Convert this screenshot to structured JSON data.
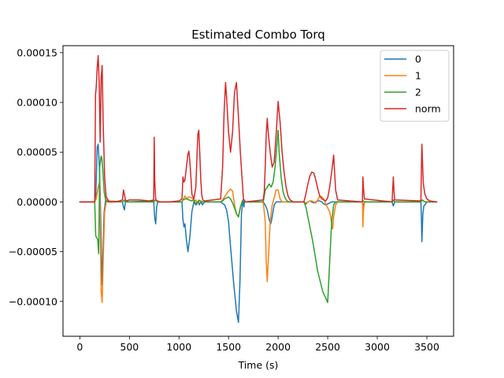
{
  "chart_data": {
    "type": "line",
    "title": "Estimated Combo Torq",
    "xlabel": "Time (s)",
    "ylabel": "",
    "xlim": [
      -170,
      3770
    ],
    "ylim": [
      -0.000135,
      0.000157
    ],
    "xticks": [
      0,
      500,
      1000,
      1500,
      2000,
      2500,
      3000,
      3500
    ],
    "xtick_labels": [
      "0",
      "500",
      "1000",
      "1500",
      "2000",
      "2500",
      "3000",
      "3500"
    ],
    "yticks": [
      -0.0001,
      -5e-05,
      0,
      5e-05,
      0.0001,
      0.00015
    ],
    "ytick_labels": [
      "−0.00010",
      "−0.00005",
      "0.00000",
      "0.00005",
      "0.00010",
      "0.00015"
    ],
    "grid": false,
    "legend_position": "upper right",
    "series": [
      {
        "name": "0",
        "color": "#1f77b4",
        "x": [
          0,
          150,
          160,
          175,
          185,
          195,
          205,
          215,
          222,
          230,
          245,
          260,
          280,
          430,
          440,
          450,
          460,
          470,
          745,
          755,
          765,
          775,
          785,
          1030,
          1040,
          1050,
          1060,
          1075,
          1090,
          1110,
          1130,
          1150,
          1170,
          1185,
          1195,
          1205,
          1215,
          1225,
          1235,
          1260,
          1420,
          1445,
          1460,
          1480,
          1500,
          1520,
          1550,
          1580,
          1600,
          1615,
          1630,
          1645,
          1655,
          1660,
          1670,
          1850,
          1870,
          1890,
          1910,
          1925,
          1935,
          1945,
          1960,
          1980,
          2000,
          2260,
          2280,
          2300,
          2320,
          2340,
          2360,
          2380,
          2400,
          2420,
          2440,
          2460,
          2480,
          2500,
          2520,
          2540,
          2560,
          2580,
          2600,
          2850,
          2855,
          2862,
          2868,
          2875,
          3150,
          3155,
          3162,
          3168,
          3175,
          3440,
          3445,
          3450,
          3460,
          3470,
          3480,
          3500,
          3530,
          3600
        ],
        "values": [
          0,
          0,
          3e-06,
          5.5e-05,
          5.8e-05,
          4e-05,
          1e-05,
          -4e-05,
          -8.3e-05,
          -6e-05,
          -1e-05,
          2e-06,
          1e-06,
          0,
          -5e-06,
          -8e-06,
          1e-06,
          0,
          1e-06,
          -1.6e-05,
          -2.2e-05,
          -5e-06,
          0,
          0,
          -1.8e-05,
          -2.5e-05,
          -2.2e-05,
          -3.8e-05,
          -5e-05,
          -3.5e-05,
          -1e-05,
          0,
          -3e-06,
          -2e-06,
          1e-06,
          -3e-06,
          -1e-06,
          0,
          -3e-06,
          0,
          0,
          -2e-06,
          -3e-06,
          -8e-06,
          -2e-05,
          -4.5e-05,
          -8e-05,
          -0.00011,
          -0.000121,
          -8e-05,
          -1.2e-05,
          2e-06,
          -5e-06,
          0,
          0,
          0,
          -3e-06,
          -8e-06,
          -1.8e-05,
          -2.2e-05,
          -1.8e-05,
          -1.2e-05,
          -3e-06,
          0,
          0,
          0,
          -2e-06,
          0,
          1e-06,
          0,
          -1e-06,
          0,
          1e-06,
          1e-06,
          0,
          -2e-06,
          -3e-06,
          -2e-06,
          -1e-06,
          0,
          0,
          0,
          0,
          0,
          -2e-06,
          -4e-06,
          -2e-06,
          0,
          0,
          -2e-06,
          -4e-06,
          -2e-06,
          0,
          0,
          -1.5e-05,
          -4e-05,
          -1.2e-05,
          -4e-06,
          -3e-06,
          0,
          0,
          0
        ]
      },
      {
        "name": "1",
        "color": "#ff7f0e",
        "x": [
          0,
          150,
          165,
          185,
          200,
          215,
          225,
          235,
          250,
          270,
          290,
          430,
          440,
          450,
          460,
          470,
          745,
          755,
          765,
          775,
          785,
          1030,
          1040,
          1050,
          1060,
          1080,
          1100,
          1130,
          1150,
          1170,
          1185,
          1200,
          1210,
          1225,
          1235,
          1260,
          1420,
          1440,
          1460,
          1480,
          1500,
          1520,
          1540,
          1560,
          1580,
          1600,
          1620,
          1640,
          1655,
          1670,
          1850,
          1870,
          1880,
          1890,
          1900,
          1920,
          1940,
          1960,
          1980,
          2000,
          2020,
          2040,
          2260,
          2280,
          2300,
          2320,
          2340,
          2360,
          2380,
          2400,
          2420,
          2440,
          2460,
          2480,
          2500,
          2520,
          2530,
          2540,
          2550,
          2560,
          2580,
          2600,
          2850,
          2852,
          2855,
          2860,
          2870,
          3150,
          3155,
          3162,
          3168,
          3175,
          3440,
          3445,
          3455,
          3465,
          3480,
          3500,
          3530,
          3600
        ],
        "values": [
          0,
          0,
          3e-06,
          1.5e-05,
          2e-05,
          -9e-05,
          -0.000101,
          -6e-05,
          -1e-05,
          2e-06,
          1e-06,
          0,
          1e-06,
          2e-06,
          1e-06,
          0,
          0,
          1e-06,
          2e-06,
          1e-06,
          0,
          0,
          2e-06,
          4e-06,
          6e-06,
          3e-06,
          5e-06,
          4e-06,
          1e-06,
          2e-06,
          -2e-06,
          2e-06,
          1e-06,
          1e-06,
          0,
          0,
          0,
          2e-06,
          5e-06,
          8e-06,
          1.1e-05,
          1.3e-05,
          1.1e-05,
          -3e-06,
          -1.2e-05,
          -1.5e-05,
          -5e-06,
          1e-06,
          1e-06,
          0,
          0,
          -2e-05,
          -6e-05,
          -8e-05,
          -6e-05,
          -2e-05,
          -3e-06,
          4e-06,
          1.2e-05,
          1.2e-05,
          3e-06,
          0,
          0,
          -1e-06,
          0,
          1e-06,
          1e-06,
          0,
          -1e-06,
          2e-06,
          6e-06,
          5e-06,
          3e-06,
          -2e-06,
          -6e-06,
          -1e-05,
          -1.5e-05,
          -2.2e-05,
          -2.7e-05,
          -1.5e-05,
          -3e-06,
          0,
          0,
          -5e-06,
          -2.5e-05,
          -1e-05,
          0,
          0,
          1e-06,
          2e-06,
          1e-06,
          0,
          0,
          1e-06,
          2e-06,
          1e-06,
          0,
          0,
          0,
          0
        ]
      },
      {
        "name": "2",
        "color": "#2ca02c",
        "x": [
          0,
          150,
          160,
          180,
          190,
          200,
          215,
          222,
          232,
          245,
          260,
          280,
          430,
          440,
          450,
          460,
          470,
          745,
          755,
          765,
          775,
          785,
          1030,
          1040,
          1060,
          1080,
          1100,
          1130,
          1150,
          1170,
          1185,
          1195,
          1210,
          1225,
          1235,
          1260,
          1420,
          1440,
          1460,
          1480,
          1500,
          1520,
          1540,
          1560,
          1580,
          1600,
          1620,
          1640,
          1650,
          1670,
          1850,
          1870,
          1890,
          1910,
          1930,
          1950,
          1970,
          1990,
          2000,
          2010,
          2030,
          2050,
          2070,
          2090,
          2110,
          2260,
          2280,
          2300,
          2350,
          2400,
          2450,
          2500,
          2520,
          2540,
          2560,
          2580,
          2600,
          2850,
          2855,
          2860,
          2870,
          3150,
          3155,
          3162,
          3168,
          3175,
          3440,
          3445,
          3455,
          3465,
          3480,
          3500,
          3530,
          3600
        ],
        "values": [
          0,
          0,
          -3.4e-05,
          -3.8e-05,
          -5.2e-05,
          3.5e-05,
          4.6e-05,
          4.4e-05,
          3.2e-05,
          1e-05,
          2e-06,
          0,
          0,
          1e-06,
          1e-06,
          1e-06,
          0,
          0,
          1e-06,
          2e-06,
          1e-06,
          0,
          0,
          2e-06,
          3e-06,
          3e-06,
          2e-06,
          1e-06,
          2e-06,
          -2e-06,
          0,
          1e-06,
          1e-06,
          0,
          0,
          0,
          0,
          1e-06,
          3e-06,
          4e-06,
          5e-06,
          3e-06,
          -1e-06,
          -6e-06,
          -1.2e-05,
          -1.5e-05,
          -5e-06,
          1e-06,
          1e-06,
          0,
          0,
          1.2e-05,
          1.5e-05,
          1.8e-05,
          1.5e-05,
          2e-05,
          3.6e-05,
          6e-05,
          7.2e-05,
          5e-05,
          2.5e-05,
          1e-05,
          4e-06,
          1e-06,
          0,
          0,
          -5e-06,
          -1.5e-05,
          -4e-05,
          -7e-05,
          -9e-05,
          -0.000101,
          -6e-05,
          -2e-05,
          -3e-06,
          0,
          0,
          0,
          1e-06,
          1e-06,
          0,
          0,
          1e-06,
          2e-06,
          1e-06,
          0,
          0,
          1e-06,
          2e-06,
          1e-06,
          0,
          0,
          0,
          0
        ]
      },
      {
        "name": "norm",
        "color": "#d62728",
        "x": [
          0,
          150,
          158,
          165,
          175,
          185,
          195,
          205,
          215,
          225,
          235,
          250,
          265,
          290,
          300,
          350,
          400,
          430,
          440,
          450,
          460,
          470,
          500,
          600,
          700,
          745,
          750,
          755,
          765,
          775,
          785,
          800,
          900,
          1000,
          1030,
          1040,
          1050,
          1060,
          1075,
          1090,
          1100,
          1110,
          1120,
          1130,
          1150,
          1170,
          1180,
          1190,
          1200,
          1210,
          1220,
          1230,
          1240,
          1260,
          1420,
          1440,
          1455,
          1470,
          1480,
          1500,
          1520,
          1540,
          1560,
          1580,
          1600,
          1620,
          1640,
          1650,
          1670,
          1850,
          1860,
          1870,
          1880,
          1890,
          1900,
          1920,
          1940,
          1960,
          1980,
          2000,
          2020,
          2040,
          2060,
          2080,
          2100,
          2120,
          2140,
          2150,
          2260,
          2280,
          2300,
          2320,
          2340,
          2360,
          2380,
          2400,
          2420,
          2440,
          2460,
          2480,
          2500,
          2520,
          2540,
          2560,
          2580,
          2600,
          2850,
          2855,
          2860,
          2870,
          3150,
          3155,
          3162,
          3168,
          3175,
          3440,
          3445,
          3450,
          3460,
          3465,
          3480,
          3500,
          3530,
          3600
        ],
        "values": [
          0,
          0,
          0.000108,
          0.000115,
          0.000135,
          0.000147,
          0.00012,
          6e-05,
          0.000125,
          0.000137,
          8e-05,
          2.5e-05,
          5e-06,
          1e-06,
          0,
          0,
          1e-06,
          2e-06,
          1.2e-05,
          7e-06,
          2e-06,
          1e-06,
          2e-06,
          2e-06,
          1e-06,
          2e-06,
          6.5e-05,
          2.2e-05,
          3e-06,
          1e-06,
          1e-06,
          0,
          0,
          1e-06,
          3e-06,
          2.5e-05,
          2e-05,
          2.2e-05,
          3.5e-05,
          4.8e-05,
          5.1e-05,
          4e-05,
          2.5e-05,
          8e-06,
          3e-06,
          1.5e-05,
          4.2e-05,
          6.8e-05,
          7.2e-05,
          4.8e-05,
          2.2e-05,
          7e-06,
          2e-06,
          1e-06,
          3e-06,
          3.5e-05,
          9e-05,
          0.00012,
          0.000105,
          7e-05,
          5e-05,
          7e-05,
          0.00011,
          0.00012,
          8.5e-05,
          4.8e-05,
          1.8e-05,
          3e-06,
          0,
          2e-06,
          1e-05,
          3.5e-05,
          6.8e-05,
          8.4e-05,
          7e-05,
          5e-05,
          3.5e-05,
          4e-05,
          6.8e-05,
          0.000101,
          8e-05,
          5e-05,
          3e-05,
          1.5e-05,
          6e-06,
          2e-06,
          1e-06,
          0,
          0,
          8e-06,
          1.8e-05,
          2.6e-05,
          3e-05,
          2.9e-05,
          2.2e-05,
          1.3e-05,
          6e-06,
          3e-06,
          2e-06,
          1e-06,
          4e-06,
          1.5e-05,
          3e-05,
          4.7e-05,
          1.2e-05,
          2e-06,
          0,
          2.5e-05,
          1.5e-05,
          3e-06,
          0,
          1.2e-05,
          2.5e-05,
          1.2e-05,
          2e-06,
          1e-06,
          3.2e-05,
          5.8e-05,
          3e-05,
          1.8e-05,
          8e-06,
          3e-06,
          1e-06,
          0
        ]
      }
    ]
  }
}
